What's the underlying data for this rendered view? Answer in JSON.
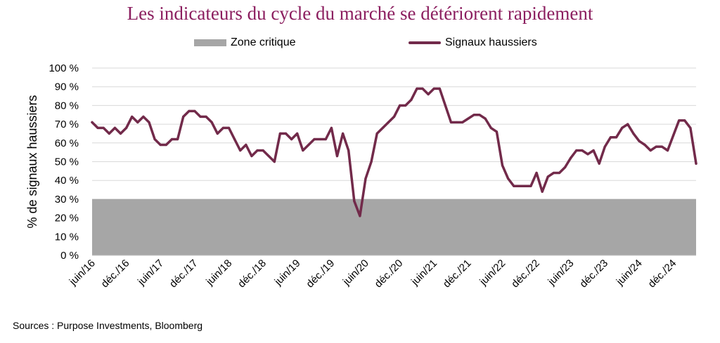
{
  "chart_data": {
    "type": "line",
    "title": "Les indicateurs du cycle du marché se détériorent rapidement",
    "ylabel": "% de signaux haussiers",
    "xlabel": "",
    "ylim": [
      0,
      100
    ],
    "yticks": [
      0,
      10,
      20,
      30,
      40,
      50,
      60,
      70,
      80,
      90,
      100
    ],
    "ytick_labels": [
      "0 %",
      "10 %",
      "20 %",
      "30 %",
      "40 %",
      "50 %",
      "60 %",
      "70 %",
      "80 %",
      "90 %",
      "100 %"
    ],
    "xtick_labels": [
      "juin/16",
      "déc./16",
      "juin/17",
      "déc./17",
      "juin/18",
      "déc./18",
      "juin/19",
      "déc./19",
      "juin/20",
      "déc./20",
      "juin/21",
      "déc./21",
      "juin/22",
      "déc./22",
      "juin/23",
      "déc./23",
      "juin/24",
      "déc./24"
    ],
    "legend": [
      "Zone critique",
      "Signaux haussiers"
    ],
    "critical_zone": {
      "name": "Zone critique",
      "from": 0,
      "to": 30
    },
    "series": [
      {
        "name": "Signaux haussiers",
        "start": "juin/16",
        "values": [
          71,
          68,
          68,
          65,
          68,
          65,
          68,
          74,
          71,
          74,
          71,
          62,
          59,
          59,
          62,
          62,
          74,
          77,
          77,
          74,
          74,
          71,
          65,
          68,
          68,
          62,
          56,
          59,
          53,
          56,
          56,
          53,
          50,
          65,
          65,
          62,
          65,
          56,
          59,
          62,
          62,
          62,
          68,
          53,
          65,
          56,
          29,
          21,
          41,
          50,
          65,
          68,
          71,
          74,
          80,
          80,
          83,
          89,
          89,
          86,
          89,
          89,
          80,
          71,
          71,
          71,
          73,
          75,
          75,
          73,
          68,
          66,
          48,
          41,
          37,
          37,
          37,
          37,
          44,
          34,
          42,
          44,
          44,
          47,
          52,
          56,
          56,
          54,
          56,
          49,
          58,
          63,
          63,
          68,
          70,
          65,
          61,
          59,
          56,
          58,
          58,
          56,
          64,
          72,
          72,
          68,
          49
        ]
      }
    ]
  },
  "source": "Sources : Purpose Investments, Bloomberg",
  "colors": {
    "line": "#722a4a",
    "zone": "#a6a6a6",
    "title": "#8b1e5f",
    "grid": "#d9d9d9"
  }
}
